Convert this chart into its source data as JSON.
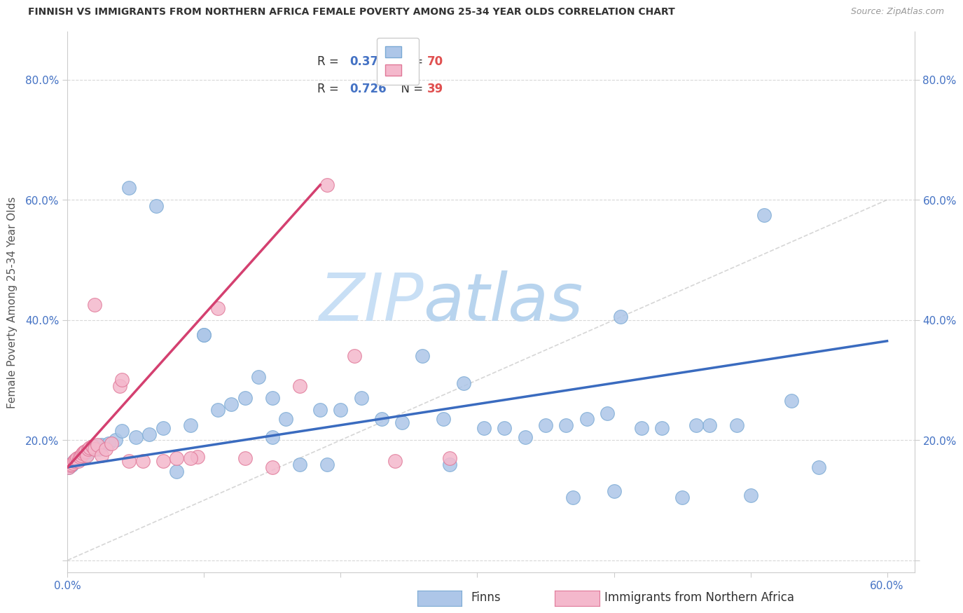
{
  "title": "FINNISH VS IMMIGRANTS FROM NORTHERN AFRICA FEMALE POVERTY AMONG 25-34 YEAR OLDS CORRELATION CHART",
  "source": "Source: ZipAtlas.com",
  "ylabel": "Female Poverty Among 25-34 Year Olds",
  "xlim": [
    0.0,
    0.62
  ],
  "ylim": [
    -0.02,
    0.88
  ],
  "background_color": "#ffffff",
  "watermark_zip": "ZIP",
  "watermark_atlas": "atlas",
  "watermark_color_zip": "#c8dff5",
  "watermark_color_atlas": "#b8d4ee",
  "finns_color": "#adc6e8",
  "finns_edge_color": "#7baad4",
  "immigrants_color": "#f4b8cc",
  "immigrants_edge_color": "#e07898",
  "finns_line_color": "#3a6bbf",
  "immigrants_line_color": "#d44070",
  "diag_color": "#cccccc",
  "grid_color": "#d8d8d8",
  "axis_color": "#cccccc",
  "tick_color": "#4472c4",
  "title_color": "#333333",
  "source_color": "#999999",
  "ylabel_color": "#555555",
  "legend_edge_color": "#cccccc",
  "finns_R": 0.379,
  "finns_N": 70,
  "immigrants_R": 0.726,
  "immigrants_N": 39,
  "finns_line_x0": 0.0,
  "finns_line_y0": 0.155,
  "finns_line_x1": 0.6,
  "finns_line_y1": 0.365,
  "immigrants_line_x0": 0.0,
  "immigrants_line_y0": 0.155,
  "immigrants_line_x1": 0.185,
  "immigrants_line_y1": 0.625,
  "finns_x": [
    0.001,
    0.002,
    0.003,
    0.004,
    0.005,
    0.006,
    0.007,
    0.008,
    0.009,
    0.01,
    0.011,
    0.012,
    0.013,
    0.014,
    0.015,
    0.017,
    0.019,
    0.021,
    0.023,
    0.025,
    0.03,
    0.035,
    0.04,
    0.05,
    0.06,
    0.07,
    0.08,
    0.09,
    0.1,
    0.11,
    0.12,
    0.13,
    0.14,
    0.15,
    0.16,
    0.17,
    0.185,
    0.2,
    0.215,
    0.23,
    0.245,
    0.26,
    0.275,
    0.29,
    0.305,
    0.32,
    0.335,
    0.35,
    0.365,
    0.38,
    0.395,
    0.405,
    0.42,
    0.435,
    0.45,
    0.47,
    0.49,
    0.51,
    0.53,
    0.55,
    0.4,
    0.46,
    0.5,
    0.37,
    0.28,
    0.19,
    0.15,
    0.1,
    0.065,
    0.045
  ],
  "finns_y": [
    0.155,
    0.16,
    0.158,
    0.162,
    0.165,
    0.168,
    0.165,
    0.17,
    0.168,
    0.172,
    0.175,
    0.178,
    0.18,
    0.175,
    0.182,
    0.185,
    0.188,
    0.19,
    0.185,
    0.192,
    0.195,
    0.2,
    0.215,
    0.205,
    0.21,
    0.22,
    0.148,
    0.225,
    0.375,
    0.25,
    0.26,
    0.27,
    0.305,
    0.205,
    0.235,
    0.16,
    0.25,
    0.25,
    0.27,
    0.235,
    0.23,
    0.34,
    0.235,
    0.295,
    0.22,
    0.22,
    0.205,
    0.225,
    0.225,
    0.235,
    0.245,
    0.405,
    0.22,
    0.22,
    0.105,
    0.225,
    0.225,
    0.575,
    0.265,
    0.155,
    0.115,
    0.225,
    0.108,
    0.105,
    0.16,
    0.16,
    0.27,
    0.375,
    0.59,
    0.62
  ],
  "immigrants_x": [
    0.001,
    0.002,
    0.003,
    0.004,
    0.005,
    0.006,
    0.007,
    0.008,
    0.009,
    0.01,
    0.011,
    0.012,
    0.013,
    0.014,
    0.015,
    0.016,
    0.018,
    0.02,
    0.022,
    0.025,
    0.028,
    0.032,
    0.038,
    0.045,
    0.055,
    0.07,
    0.08,
    0.095,
    0.11,
    0.13,
    0.15,
    0.17,
    0.19,
    0.21,
    0.24,
    0.28,
    0.02,
    0.04,
    0.09
  ],
  "immigrants_y": [
    0.155,
    0.158,
    0.16,
    0.162,
    0.165,
    0.168,
    0.17,
    0.165,
    0.172,
    0.175,
    0.178,
    0.18,
    0.182,
    0.175,
    0.185,
    0.188,
    0.19,
    0.185,
    0.192,
    0.175,
    0.185,
    0.195,
    0.29,
    0.165,
    0.165,
    0.165,
    0.17,
    0.172,
    0.42,
    0.17,
    0.155,
    0.29,
    0.625,
    0.34,
    0.165,
    0.17,
    0.425,
    0.3,
    0.17
  ]
}
